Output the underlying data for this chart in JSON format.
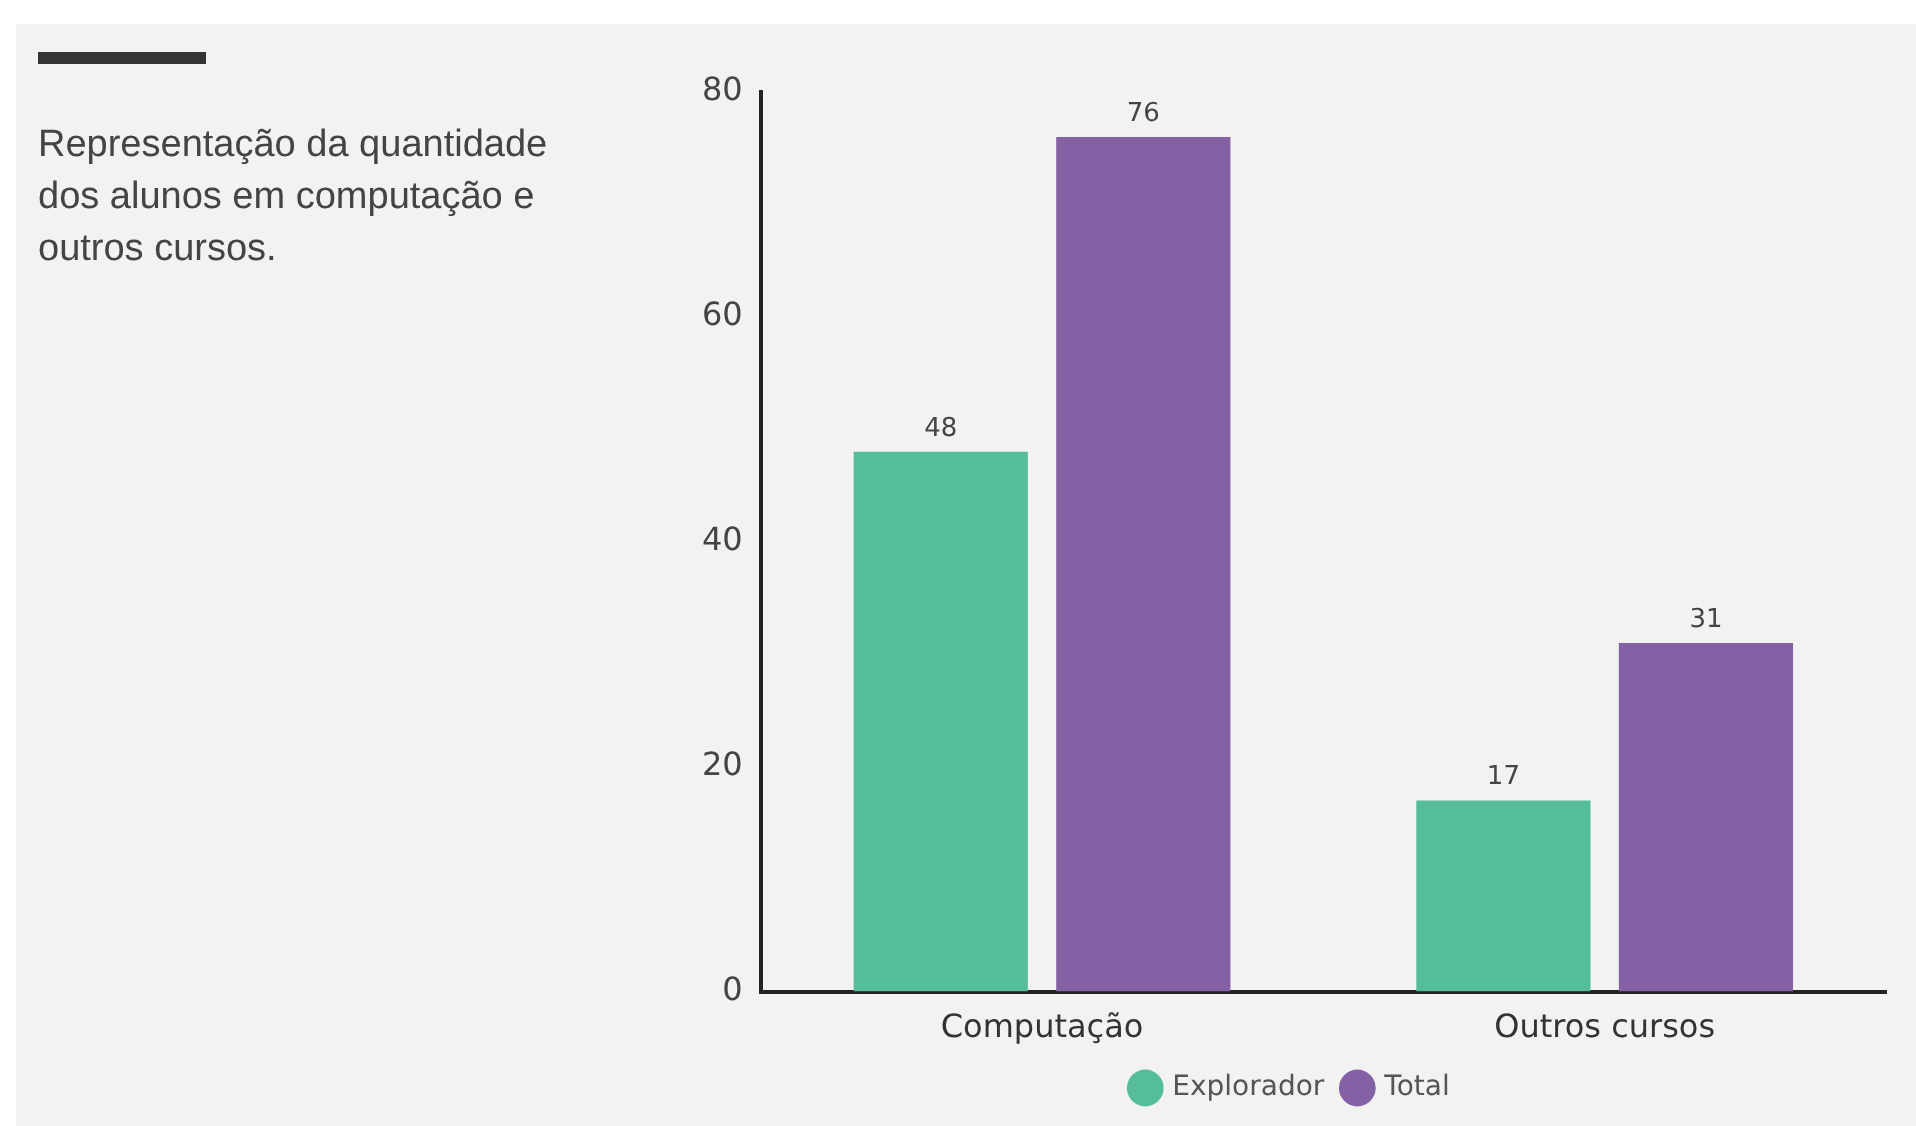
{
  "chart_data": {
    "type": "bar",
    "subtitle": "Representação da quantidade dos alunos em computação e outros cursos.",
    "categories": [
      "Computação",
      "Outros cursos"
    ],
    "series": [
      {
        "name": "Explorador",
        "color": "#55bd9b",
        "values": [
          48,
          17
        ]
      },
      {
        "name": "Total",
        "color": "#8460a4",
        "values": [
          76,
          31
        ]
      }
    ],
    "ylim": [
      0,
      80
    ],
    "yticks": [
      0,
      20,
      40,
      60,
      80
    ],
    "grid": false,
    "legend": "bottom",
    "data_labels": true
  }
}
